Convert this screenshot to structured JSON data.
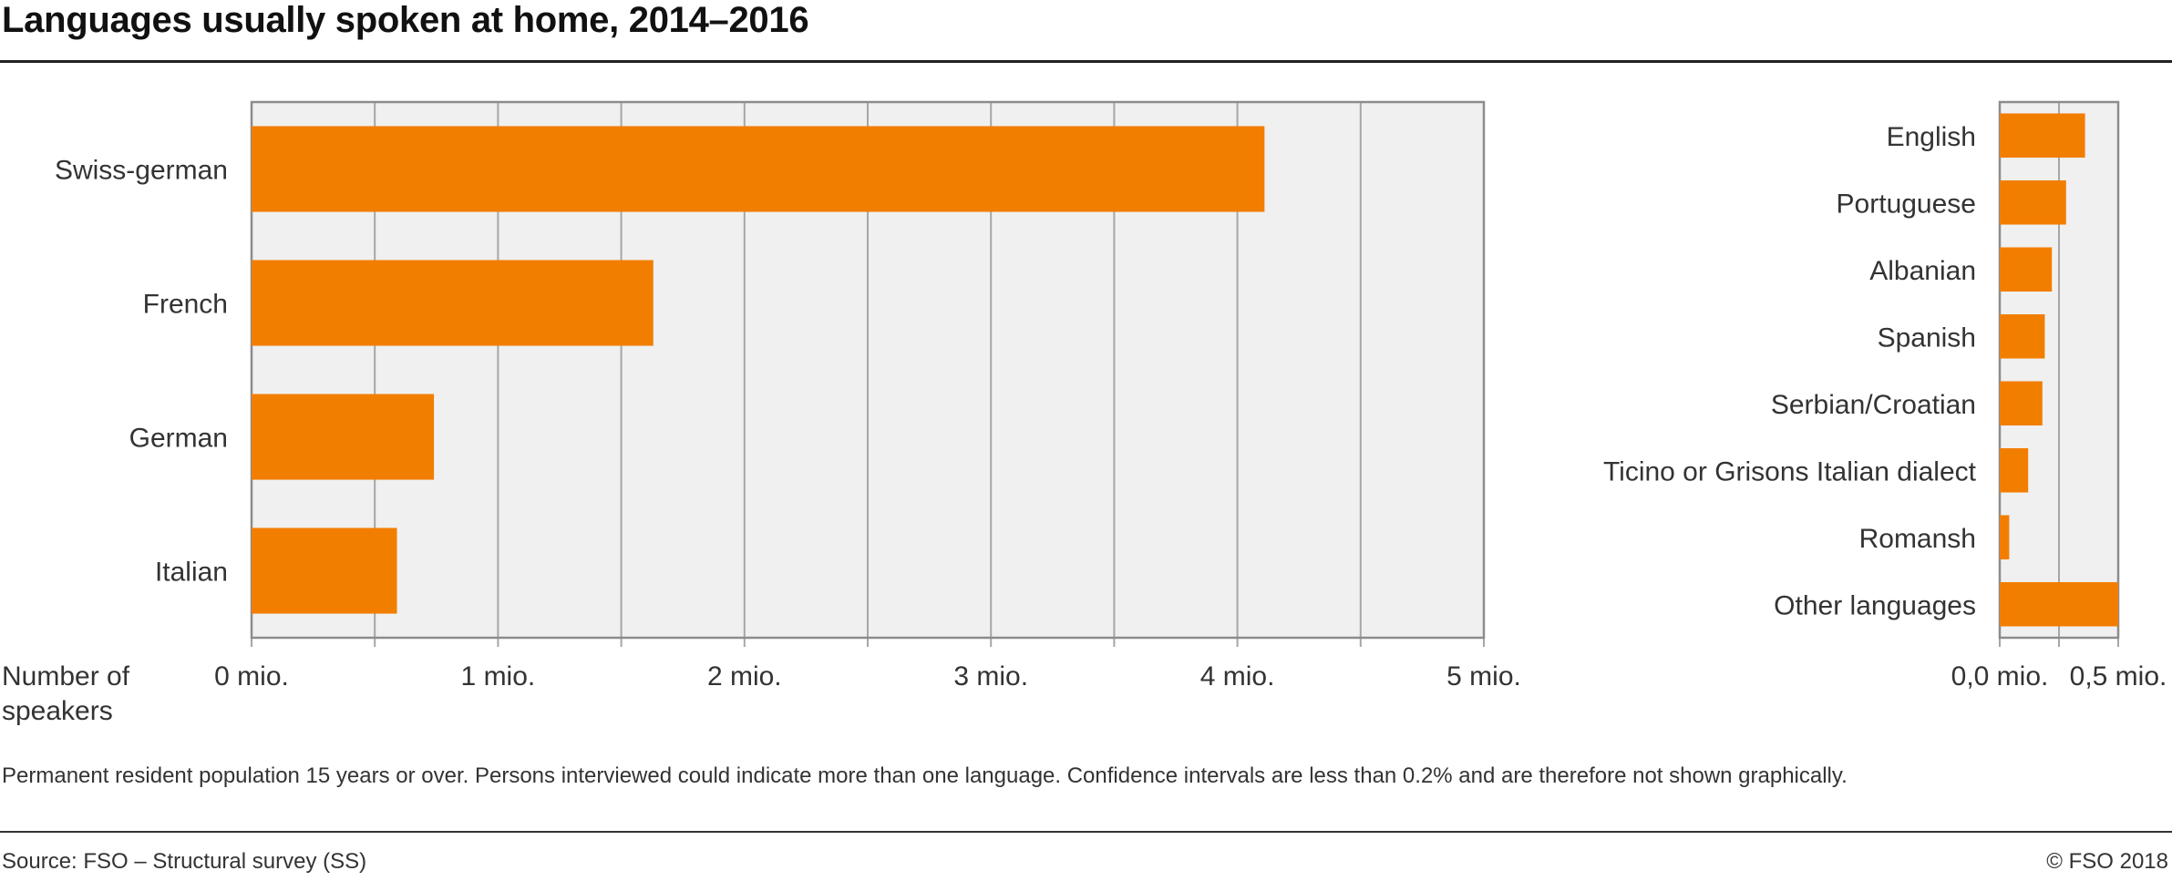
{
  "title": "Languages usually spoken at home, 2014–2016",
  "note": "Permanent resident population 15 years or over. Persons interviewed could indicate more than one language. Confidence intervals are less than 0.2% and are therefore not shown graphically.",
  "source": "Source: FSO – Structural survey (SS)",
  "copyright": "© FSO 2018",
  "colors": {
    "bar": "#f27e00",
    "plot_bg": "#f0f0f0",
    "grid": "#a6a6a6",
    "frame": "#8c8c8c"
  },
  "chart_data": [
    {
      "type": "bar",
      "orientation": "horizontal",
      "xlabel": "Number of speakers",
      "categories": [
        "Swiss-german",
        "French",
        "German",
        "Italian"
      ],
      "values": [
        4.11,
        1.63,
        0.74,
        0.59
      ],
      "unit": "mio.",
      "xlim": [
        0,
        5
      ],
      "tick_values": [
        0,
        1,
        2,
        3,
        4,
        5
      ],
      "tick_labels": [
        "0 mio.",
        "1 mio.",
        "2 mio.",
        "3 mio.",
        "4 mio.",
        "5 mio."
      ],
      "grid": true
    },
    {
      "type": "bar",
      "orientation": "horizontal",
      "categories": [
        "English",
        "Portuguese",
        "Albanian",
        "Spanish",
        "Serbian/Croatian",
        "Ticino or Grisons Italian dialect",
        "Romansh",
        "Other languages"
      ],
      "values": [
        0.36,
        0.28,
        0.22,
        0.19,
        0.18,
        0.12,
        0.04,
        0.5
      ],
      "unit": "mio.",
      "xlim": [
        0,
        0.5
      ],
      "tick_values": [
        0,
        0.5
      ],
      "tick_labels": [
        "0,0 mio.",
        "0,5 mio."
      ],
      "grid": true
    }
  ]
}
